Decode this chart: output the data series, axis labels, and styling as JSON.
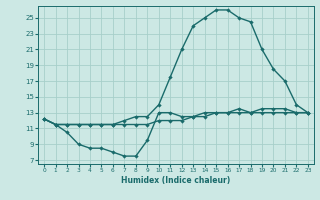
{
  "bg_color": "#cce8e4",
  "grid_color": "#a8cfca",
  "line_color": "#1a6b6b",
  "xlabel": "Humidex (Indice chaleur)",
  "xlim": [
    -0.5,
    23.5
  ],
  "ylim": [
    6.5,
    26.5
  ],
  "yticks": [
    7,
    9,
    11,
    13,
    15,
    17,
    19,
    21,
    23,
    25
  ],
  "xticks": [
    0,
    1,
    2,
    3,
    4,
    5,
    6,
    7,
    8,
    9,
    10,
    11,
    12,
    13,
    14,
    15,
    16,
    17,
    18,
    19,
    20,
    21,
    22,
    23
  ],
  "line1_x": [
    0,
    1,
    2,
    3,
    4,
    5,
    6,
    7,
    8,
    9,
    10,
    11,
    12,
    13,
    14,
    15,
    16,
    17,
    18,
    19,
    20,
    21,
    22,
    23
  ],
  "line1_y": [
    12.2,
    11.5,
    10.5,
    9.0,
    8.5,
    8.5,
    8.0,
    7.5,
    7.5,
    9.5,
    13.0,
    13.0,
    12.5,
    12.5,
    13.0,
    13.0,
    13.0,
    13.5,
    13.0,
    13.5,
    13.5,
    13.5,
    13.0,
    13.0
  ],
  "line2_x": [
    0,
    1,
    2,
    3,
    4,
    5,
    6,
    7,
    8,
    9,
    10,
    11,
    12,
    13,
    14,
    15,
    16,
    17,
    18,
    19,
    20,
    21,
    22,
    23
  ],
  "line2_y": [
    12.2,
    11.5,
    11.5,
    11.5,
    11.5,
    11.5,
    11.5,
    11.5,
    11.5,
    11.5,
    12.0,
    12.0,
    12.0,
    12.5,
    12.5,
    13.0,
    13.0,
    13.0,
    13.0,
    13.0,
    13.0,
    13.0,
    13.0,
    13.0
  ],
  "line3_x": [
    0,
    1,
    2,
    3,
    4,
    5,
    6,
    7,
    8,
    9,
    10,
    11,
    12,
    13,
    14,
    15,
    16,
    17,
    18,
    19,
    20,
    21,
    22,
    23
  ],
  "line3_y": [
    12.2,
    11.5,
    11.5,
    11.5,
    11.5,
    11.5,
    11.5,
    12.0,
    12.5,
    12.5,
    14.0,
    17.5,
    21.0,
    24.0,
    25.0,
    26.0,
    26.0,
    25.0,
    24.5,
    21.0,
    18.5,
    17.0,
    14.0,
    13.0
  ]
}
